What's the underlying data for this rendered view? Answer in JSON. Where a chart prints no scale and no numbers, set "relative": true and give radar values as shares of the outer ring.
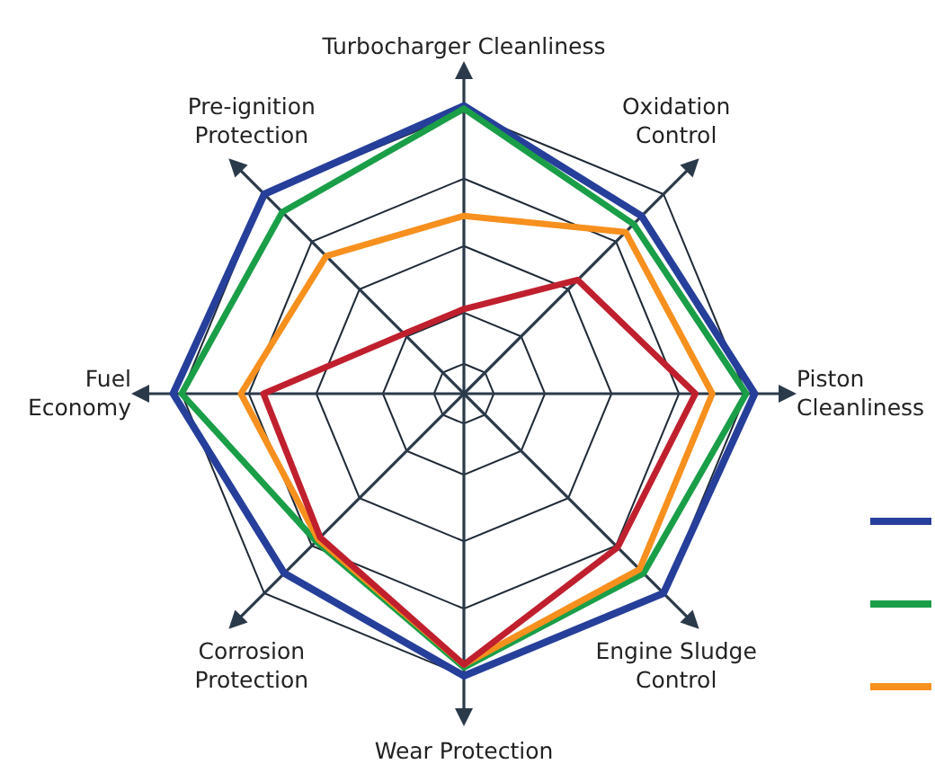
{
  "chart_data": {
    "type": "radar",
    "relative": true,
    "categories": [
      "Turbocharger Cleanliness",
      "Oxidation Control",
      "Piston Cleanliness",
      "Engine Sludge Control",
      "Wear Protection",
      "Corrosion Protection",
      "Fuel Economy",
      "Pre-ignition Protection"
    ],
    "series": [
      {
        "color": "#263f9a",
        "values": [
          1.02,
          0.89,
          1.03,
          1.0,
          1.0,
          0.9,
          1.03,
          1.0
        ]
      },
      {
        "color": "#1a9e48",
        "values": [
          1.01,
          0.85,
          1.0,
          0.9,
          0.97,
          0.74,
          1.0,
          0.91
        ]
      },
      {
        "color": "#f7901e",
        "values": [
          0.63,
          0.81,
          0.88,
          0.88,
          0.96,
          0.73,
          0.79,
          0.69
        ]
      },
      {
        "color": "#c0202e",
        "values": [
          0.3,
          0.57,
          0.82,
          0.77,
          0.96,
          0.72,
          0.71,
          0.3
        ]
      }
    ]
  }
}
